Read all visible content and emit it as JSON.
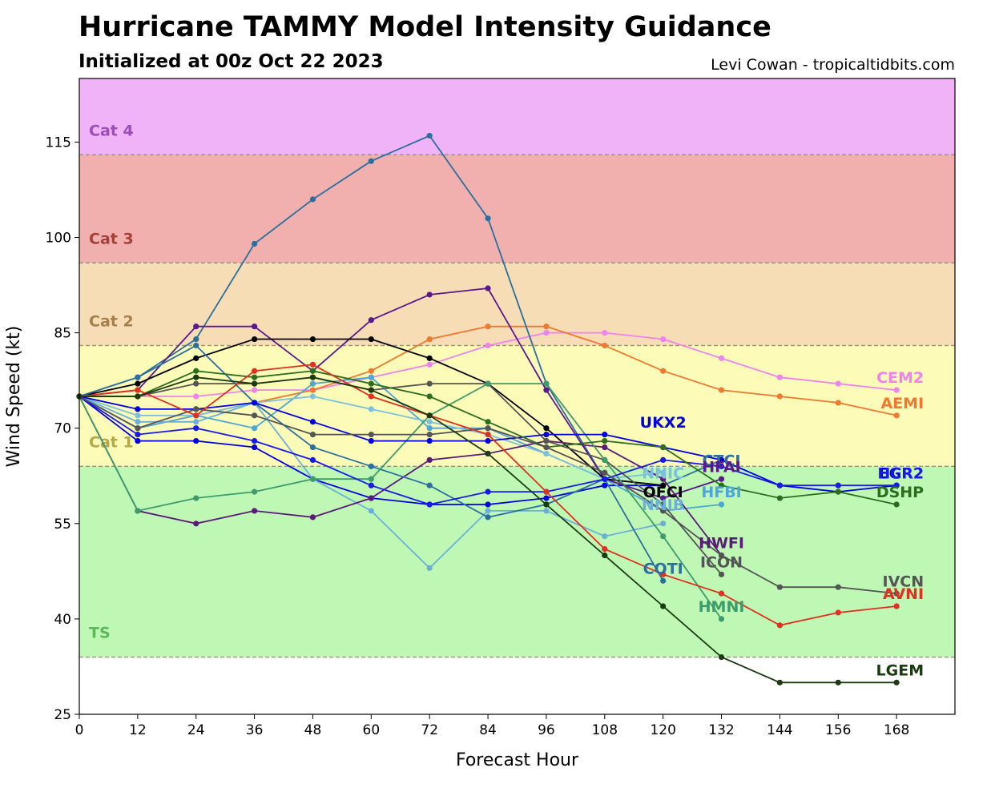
{
  "header": {
    "title": "Hurricane TAMMY Model Intensity Guidance",
    "subtitle": "Initialized at 00z Oct 22 2023",
    "credit": "Levi Cowan - tropicaltidbits.com"
  },
  "chart_data": {
    "type": "line",
    "title": "Hurricane TAMMY Model Intensity Guidance",
    "subtitle": "Initialized at 00z Oct 22 2023",
    "xlabel": "Forecast Hour",
    "ylabel": "Wind Speed (kt)",
    "xlim": [
      0,
      180
    ],
    "ylim": [
      25,
      125
    ],
    "xticks": [
      0,
      12,
      24,
      36,
      48,
      60,
      72,
      84,
      96,
      108,
      120,
      132,
      144,
      156,
      168
    ],
    "yticks": [
      25,
      40,
      55,
      70,
      85,
      100,
      115
    ],
    "bands": [
      {
        "name": "TS",
        "min": 34,
        "max": 64,
        "color": "#bff8b5",
        "label_color": "#5cb85c",
        "label_value": 37
      },
      {
        "name": "Cat 1",
        "min": 64,
        "max": 83,
        "color": "#fdfbb8",
        "label_color": "#b3a947",
        "label_value": 67
      },
      {
        "name": "Cat 2",
        "min": 83,
        "max": 96,
        "color": "#f7ddb6",
        "label_color": "#a5804b",
        "label_value": 86
      },
      {
        "name": "Cat 3",
        "min": 96,
        "max": 113,
        "color": "#f1b0ae",
        "label_color": "#a8403a",
        "label_value": 99
      },
      {
        "name": "Cat 4",
        "min": 113,
        "max": 125,
        "color": "#f0b3f8",
        "label_color": "#9b4db8",
        "label_value": 116
      }
    ],
    "series": [
      {
        "name": "CEM2",
        "color": "#ee82ee",
        "points": [
          [
            0,
            75
          ],
          [
            12,
            75
          ],
          [
            24,
            75
          ],
          [
            36,
            76
          ],
          [
            48,
            76
          ],
          [
            60,
            78
          ],
          [
            72,
            80
          ],
          [
            84,
            83
          ],
          [
            96,
            85
          ],
          [
            108,
            85
          ],
          [
            120,
            84
          ],
          [
            132,
            81
          ],
          [
            144,
            78
          ],
          [
            156,
            77
          ],
          [
            168,
            76
          ]
        ],
        "label_value": 78,
        "label_hour": 168
      },
      {
        "name": "AEMI",
        "color": "#f07830",
        "points": [
          [
            0,
            75
          ],
          [
            12,
            70
          ],
          [
            24,
            72
          ],
          [
            36,
            74
          ],
          [
            48,
            76
          ],
          [
            60,
            79
          ],
          [
            72,
            84
          ],
          [
            84,
            86
          ],
          [
            96,
            86
          ],
          [
            108,
            83
          ],
          [
            120,
            79
          ],
          [
            132,
            76
          ],
          [
            144,
            75
          ],
          [
            156,
            74
          ],
          [
            168,
            72
          ]
        ],
        "label_value": 74,
        "label_hour": 168
      },
      {
        "name": "UKX2",
        "color": "#0000e0",
        "points": [
          [
            0,
            75
          ],
          [
            12,
            68
          ],
          [
            24,
            68
          ],
          [
            36,
            67
          ],
          [
            48,
            62
          ],
          [
            60,
            59
          ],
          [
            72,
            58
          ],
          [
            84,
            58
          ],
          [
            96,
            59
          ],
          [
            108,
            61
          ],
          [
            120,
            61
          ]
        ],
        "label_value": 71,
        "label_hour": 120
      },
      {
        "name": "CTCI",
        "color": "#2a6fa0",
        "points": [
          [
            0,
            75
          ],
          [
            12,
            78
          ],
          [
            24,
            84
          ],
          [
            36,
            99
          ],
          [
            48,
            106
          ],
          [
            60,
            112
          ],
          [
            72,
            116
          ],
          [
            84,
            103
          ],
          [
            96,
            77
          ],
          [
            108,
            62
          ],
          [
            120,
            61
          ],
          [
            132,
            65
          ]
        ],
        "label_value": 65,
        "label_hour": 132
      },
      {
        "name": "HFAI",
        "color": "#5b1a8c",
        "points": [
          [
            0,
            75
          ],
          [
            12,
            76
          ],
          [
            24,
            86
          ],
          [
            36,
            86
          ],
          [
            48,
            79
          ],
          [
            60,
            87
          ],
          [
            72,
            91
          ],
          [
            84,
            92
          ],
          [
            96,
            76
          ],
          [
            108,
            62
          ],
          [
            120,
            59
          ],
          [
            132,
            62
          ]
        ],
        "label_value": 64,
        "label_hour": 132
      },
      {
        "name": "HFBI",
        "color": "#4da6d8",
        "points": [
          [
            0,
            75
          ],
          [
            12,
            70
          ],
          [
            24,
            72
          ],
          [
            36,
            70
          ],
          [
            48,
            77
          ],
          [
            60,
            78
          ],
          [
            72,
            70
          ],
          [
            84,
            70
          ],
          [
            96,
            66
          ],
          [
            108,
            62
          ],
          [
            120,
            57
          ],
          [
            132,
            58
          ]
        ],
        "label_value": 60,
        "label_hour": 132
      },
      {
        "name": "NNIC",
        "color": "#7cc0dc",
        "points": [
          [
            0,
            75
          ],
          [
            12,
            72
          ],
          [
            24,
            72
          ],
          [
            36,
            74
          ],
          [
            48,
            75
          ],
          [
            60,
            73
          ],
          [
            72,
            71
          ],
          [
            84,
            69
          ],
          [
            96,
            66
          ],
          [
            108,
            62
          ],
          [
            120,
            63
          ]
        ],
        "label_value": 63,
        "label_hour": 120
      },
      {
        "name": "NNIB",
        "color": "#6ab0d8",
        "points": [
          [
            0,
            75
          ],
          [
            12,
            71
          ],
          [
            24,
            71
          ],
          [
            36,
            74
          ],
          [
            48,
            62
          ],
          [
            60,
            57
          ],
          [
            72,
            48
          ],
          [
            84,
            57
          ],
          [
            96,
            57
          ],
          [
            108,
            53
          ],
          [
            120,
            55
          ]
        ],
        "label_value": 58,
        "label_hour": 120
      },
      {
        "name": "OFCI",
        "color": "#000000",
        "points": [
          [
            0,
            75
          ],
          [
            12,
            77
          ],
          [
            24,
            81
          ],
          [
            36,
            84
          ],
          [
            48,
            84
          ],
          [
            60,
            84
          ],
          [
            72,
            81
          ],
          [
            84,
            77
          ],
          [
            96,
            70
          ],
          [
            108,
            62
          ],
          [
            120,
            61
          ]
        ],
        "label_value": 60,
        "label_hour": 120
      },
      {
        "name": "HWFI",
        "color": "#5b1a7a",
        "points": [
          [
            0,
            75
          ],
          [
            12,
            57
          ],
          [
            24,
            55
          ],
          [
            36,
            57
          ],
          [
            48,
            56
          ],
          [
            60,
            59
          ],
          [
            72,
            65
          ],
          [
            84,
            66
          ],
          [
            96,
            68
          ],
          [
            108,
            67
          ],
          [
            120,
            62
          ],
          [
            132,
            50
          ]
        ],
        "label_value": 52,
        "label_hour": 132
      },
      {
        "name": "ICON",
        "color": "#555555",
        "points": [
          [
            0,
            75
          ],
          [
            12,
            75
          ],
          [
            24,
            77
          ],
          [
            36,
            77
          ],
          [
            48,
            78
          ],
          [
            60,
            76
          ],
          [
            72,
            77
          ],
          [
            84,
            77
          ],
          [
            96,
            68
          ],
          [
            108,
            65
          ],
          [
            120,
            58
          ],
          [
            132,
            47
          ]
        ],
        "label_value": 49,
        "label_hour": 132
      },
      {
        "name": "COTI",
        "color": "#2a6fa0",
        "points": [
          [
            0,
            75
          ],
          [
            12,
            78
          ],
          [
            24,
            83
          ],
          [
            36,
            74
          ],
          [
            48,
            67
          ],
          [
            60,
            64
          ],
          [
            72,
            61
          ],
          [
            84,
            56
          ],
          [
            96,
            58
          ],
          [
            108,
            62
          ],
          [
            120,
            46
          ]
        ],
        "label_value": 48,
        "label_hour": 120
      },
      {
        "name": "HMNI",
        "color": "#3c9c6c",
        "points": [
          [
            0,
            75
          ],
          [
            12,
            57
          ],
          [
            24,
            59
          ],
          [
            36,
            60
          ],
          [
            48,
            62
          ],
          [
            60,
            62
          ],
          [
            72,
            72
          ],
          [
            84,
            77
          ],
          [
            96,
            77
          ],
          [
            108,
            65
          ],
          [
            120,
            53
          ],
          [
            132,
            40
          ]
        ],
        "label_value": 42,
        "label_hour": 132
      },
      {
        "name": "EGR2",
        "color": "#0000e0",
        "points": [
          [
            0,
            75
          ],
          [
            12,
            73
          ],
          [
            24,
            73
          ],
          [
            36,
            74
          ],
          [
            48,
            71
          ],
          [
            60,
            68
          ],
          [
            72,
            68
          ],
          [
            84,
            68
          ],
          [
            96,
            69
          ],
          [
            108,
            69
          ],
          [
            120,
            67
          ],
          [
            132,
            65
          ],
          [
            144,
            61
          ],
          [
            156,
            60
          ],
          [
            168,
            61
          ]
        ],
        "label_value": 63,
        "label_hour": 168
      },
      {
        "name": "HCR2",
        "color": "#1a1ae8",
        "points": [
          [
            0,
            75
          ],
          [
            12,
            69
          ],
          [
            24,
            70
          ],
          [
            36,
            68
          ],
          [
            48,
            65
          ],
          [
            60,
            61
          ],
          [
            72,
            58
          ],
          [
            84,
            60
          ],
          [
            96,
            60
          ],
          [
            108,
            62
          ],
          [
            120,
            65
          ],
          [
            132,
            64
          ],
          [
            144,
            61
          ],
          [
            156,
            61
          ],
          [
            168,
            61
          ]
        ],
        "label_value": 63,
        "label_hour": 168
      },
      {
        "name": "DSHP",
        "color": "#2a6e1e",
        "points": [
          [
            0,
            75
          ],
          [
            12,
            75
          ],
          [
            24,
            79
          ],
          [
            36,
            78
          ],
          [
            48,
            79
          ],
          [
            60,
            77
          ],
          [
            72,
            75
          ],
          [
            84,
            71
          ],
          [
            96,
            67
          ],
          [
            108,
            68
          ],
          [
            120,
            67
          ],
          [
            132,
            61
          ],
          [
            144,
            59
          ],
          [
            156,
            60
          ],
          [
            168,
            58
          ]
        ],
        "label_value": 60,
        "label_hour": 168
      },
      {
        "name": "IVCN",
        "color": "#555555",
        "points": [
          [
            0,
            75
          ],
          [
            12,
            70
          ],
          [
            24,
            73
          ],
          [
            36,
            72
          ],
          [
            48,
            69
          ],
          [
            60,
            69
          ],
          [
            72,
            69
          ],
          [
            84,
            70
          ],
          [
            96,
            67
          ],
          [
            108,
            63
          ],
          [
            120,
            57
          ],
          [
            132,
            50
          ],
          [
            144,
            45
          ],
          [
            156,
            45
          ],
          [
            168,
            44
          ]
        ],
        "label_value": 46,
        "label_hour": 168
      },
      {
        "name": "AVNI",
        "color": "#e03020",
        "points": [
          [
            0,
            75
          ],
          [
            12,
            76
          ],
          [
            24,
            72
          ],
          [
            36,
            79
          ],
          [
            48,
            80
          ],
          [
            60,
            75
          ],
          [
            72,
            72
          ],
          [
            84,
            69
          ],
          [
            96,
            60
          ],
          [
            108,
            51
          ],
          [
            120,
            47
          ],
          [
            132,
            44
          ],
          [
            144,
            39
          ],
          [
            156,
            41
          ],
          [
            168,
            42
          ]
        ],
        "label_value": 44,
        "label_hour": 168
      },
      {
        "name": "LGEM",
        "color": "#1a3a10",
        "points": [
          [
            0,
            75
          ],
          [
            12,
            75
          ],
          [
            24,
            78
          ],
          [
            36,
            77
          ],
          [
            48,
            78
          ],
          [
            60,
            76
          ],
          [
            72,
            72
          ],
          [
            84,
            66
          ],
          [
            96,
            58
          ],
          [
            108,
            50
          ],
          [
            120,
            42
          ],
          [
            132,
            34
          ],
          [
            144,
            30
          ],
          [
            156,
            30
          ],
          [
            168,
            30
          ]
        ],
        "label_value": 32,
        "label_hour": 168
      }
    ]
  }
}
